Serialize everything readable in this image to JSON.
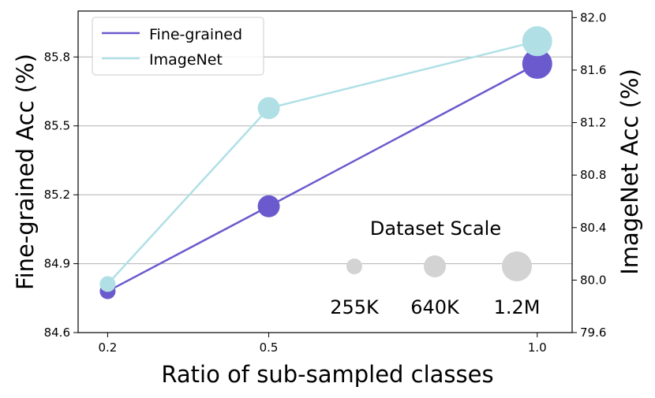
{
  "chart_data": {
    "type": "line",
    "xlabel": "Ratio of sub-sampled classes",
    "ylabel_left": "Fine-grained Acc (%)",
    "ylabel_right": "ImageNet Acc (%)",
    "x_ticks": [
      "0.2",
      "0.5",
      "1.0"
    ],
    "x_values": [
      0.2,
      0.5,
      1.0
    ],
    "xlim": [
      0.145,
      1.065
    ],
    "ylim_left": [
      84.6,
      86.0
    ],
    "ylim_right": [
      79.6,
      82.05
    ],
    "left_ticks": [
      "84.6",
      "84.9",
      "85.2",
      "85.5",
      "85.8"
    ],
    "right_ticks": [
      "79.6",
      "80.0",
      "80.4",
      "80.8",
      "81.2",
      "81.6",
      "82.0"
    ],
    "grid": "horizontal",
    "series": [
      {
        "name": "Fine-grained",
        "axis": "left",
        "color": "#6a5acd",
        "x": [
          0.2,
          0.5,
          1.0
        ],
        "y": [
          84.78,
          85.15,
          85.77
        ],
        "dataset_scale": [
          "255K",
          "640K",
          "1.2M"
        ]
      },
      {
        "name": "ImageNet",
        "axis": "right",
        "color": "#b0e0e6",
        "x": [
          0.2,
          0.5,
          1.0
        ],
        "y": [
          79.97,
          81.31,
          81.82
        ],
        "dataset_scale": [
          "255K",
          "640K",
          "1.2M"
        ]
      }
    ],
    "legend": {
      "position": "top-left",
      "entries": [
        "Fine-grained",
        "ImageNet"
      ]
    },
    "size_legend": {
      "title": "Dataset Scale",
      "labels": [
        "255K",
        "640K",
        "1.2M"
      ],
      "color": "#d3d3d3"
    }
  }
}
